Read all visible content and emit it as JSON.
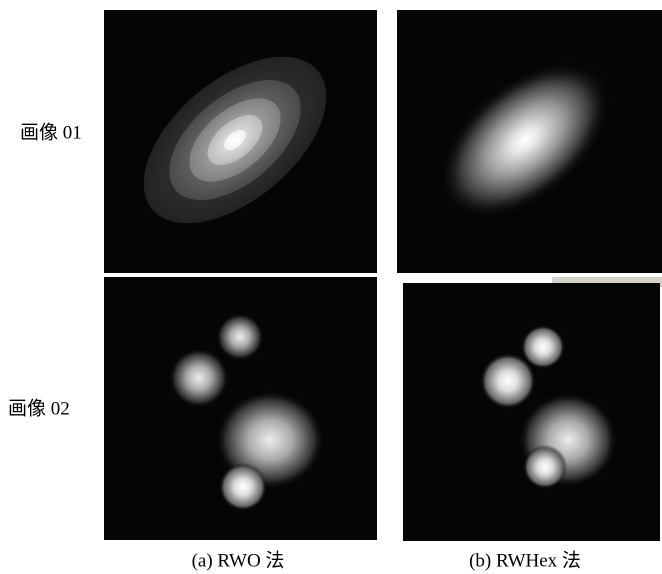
{
  "rows": [
    {
      "label": "画像 01"
    },
    {
      "label": "画像 02"
    }
  ],
  "captions": [
    "(a) RWO 法",
    "(b) RWHex 法"
  ]
}
